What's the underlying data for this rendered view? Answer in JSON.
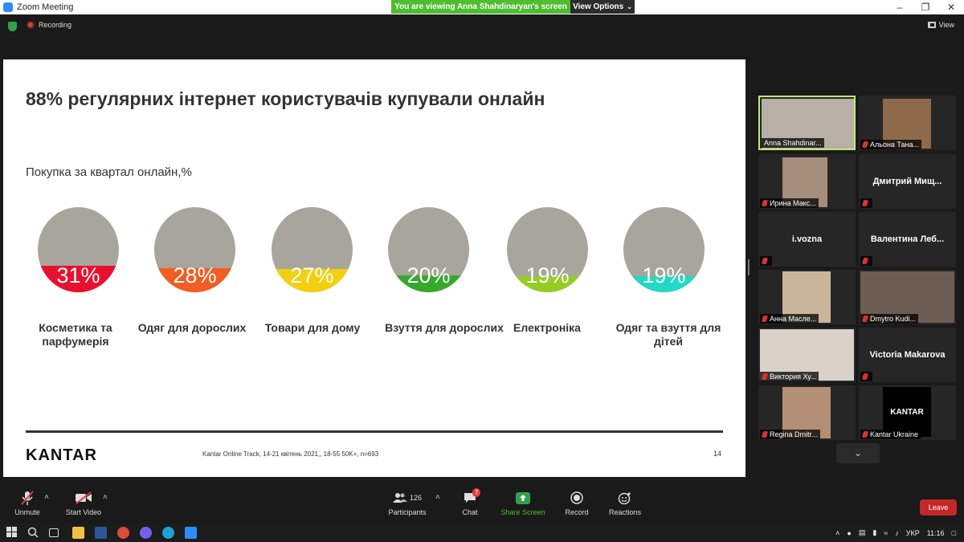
{
  "window": {
    "title": "Zoom Meeting"
  },
  "banner": {
    "viewing_text": "You are viewing Anna Shahdinaryan's screen",
    "options_label": "View Options"
  },
  "topbar": {
    "recording_label": "Recording",
    "view_label": "View"
  },
  "slide": {
    "title": "88% регулярних інтернет користувачів купували онлайн",
    "subtitle": "Покупка за квартал онлайн,%",
    "source": "Kantar Online Track, 14-21 квітень 2021,, 18-55 50K+, n=693",
    "page_number": "14",
    "logo_text": "KANTAR"
  },
  "chart_data": {
    "type": "pie",
    "title": "Покупка за квартал онлайн,%",
    "categories": [
      "Косметика та парфумерія",
      "Одяг для дорослих",
      "Товари для дому",
      "Взуття для дорослих",
      "Електроніка",
      "Одяг та взуття для дітей"
    ],
    "values": [
      31,
      28,
      27,
      20,
      19,
      19
    ],
    "value_labels": [
      "31%",
      "28%",
      "27%",
      "20%",
      "19%",
      "19%"
    ],
    "colors": [
      "#e8112d",
      "#f15d22",
      "#f2d00f",
      "#37a82c",
      "#95cc24",
      "#22d9c4"
    ],
    "base_color": "#a8a69c"
  },
  "participants": [
    {
      "name": "Anna Shahdinar...",
      "muted": false,
      "active": true,
      "video": true
    },
    {
      "name": "Альона Тана...",
      "muted": true,
      "active": false,
      "video": true
    },
    {
      "name": "Ирина Макс...",
      "muted": true,
      "active": false,
      "video": true
    },
    {
      "name": "Дмитрий Мищ...",
      "muted": true,
      "active": false,
      "video": false
    },
    {
      "name": "i.vozna",
      "muted": true,
      "active": false,
      "video": false
    },
    {
      "name": "Валентина Леб...",
      "muted": true,
      "active": false,
      "video": false
    },
    {
      "name": "Анна Масле...",
      "muted": true,
      "active": false,
      "video": true
    },
    {
      "name": "Dmytro Kudi...",
      "muted": true,
      "active": false,
      "video": true
    },
    {
      "name": "Виктория Ху...",
      "muted": true,
      "active": false,
      "video": true
    },
    {
      "name": "Victoria Makarova",
      "muted": true,
      "active": false,
      "video": false
    },
    {
      "name": "Regina Dmitr...",
      "muted": true,
      "active": false,
      "video": true
    },
    {
      "name": "Kantar Ukraine",
      "muted": true,
      "active": false,
      "video": true,
      "video_text": "KANTAR"
    }
  ],
  "toolbar": {
    "unmute_label": "Unmute",
    "start_video_label": "Start Video",
    "participants_label": "Participants",
    "participants_count": "126",
    "chat_label": "Chat",
    "chat_badge": "7",
    "share_label": "Share Screen",
    "record_label": "Record",
    "reactions_label": "Reactions",
    "leave_label": "Leave"
  },
  "taskbar": {
    "lang": "УКР",
    "time": "11:16"
  }
}
